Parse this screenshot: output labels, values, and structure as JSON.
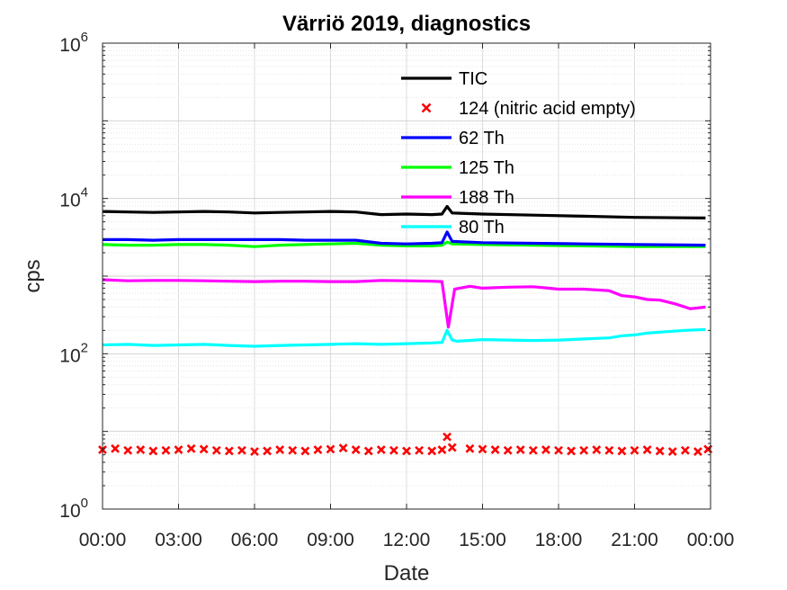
{
  "chart_data": {
    "type": "line",
    "title": "Värriö 2019, diagnostics",
    "xlabel": "Date",
    "ylabel": "cps",
    "yscale": "log",
    "ylim": [
      1,
      1000000
    ],
    "xlim_hours": [
      0,
      24
    ],
    "grid": true,
    "legend_position": "top-center",
    "x_tick_labels": [
      "00:00",
      "03:00",
      "06:00",
      "09:00",
      "12:00",
      "15:00",
      "18:00",
      "21:00",
      "00:00"
    ],
    "y_ticks": [
      {
        "base": "10",
        "exp": "0",
        "value": 1
      },
      {
        "base": "10",
        "exp": "2",
        "value": 100
      },
      {
        "base": "10",
        "exp": "4",
        "value": 10000
      },
      {
        "base": "10",
        "exp": "6",
        "value": 1000000
      }
    ],
    "series": [
      {
        "name": "TIC",
        "color": "#000000",
        "style": "line",
        "points": [
          [
            0,
            6800
          ],
          [
            1,
            6700
          ],
          [
            2,
            6600
          ],
          [
            3,
            6700
          ],
          [
            4,
            6800
          ],
          [
            5,
            6700
          ],
          [
            6,
            6500
          ],
          [
            7,
            6600
          ],
          [
            8,
            6700
          ],
          [
            9,
            6800
          ],
          [
            10,
            6700
          ],
          [
            11,
            6200
          ],
          [
            12,
            6300
          ],
          [
            13,
            6200
          ],
          [
            13.4,
            6300
          ],
          [
            13.6,
            7900
          ],
          [
            13.8,
            6500
          ],
          [
            15,
            6300
          ],
          [
            17,
            6100
          ],
          [
            19,
            5900
          ],
          [
            21,
            5700
          ],
          [
            23.8,
            5600
          ]
        ]
      },
      {
        "name": "124 (nitric acid empty)",
        "color": "#ff0000",
        "style": "markers",
        "points": [
          [
            0,
            5.8
          ],
          [
            0.5,
            6.0
          ],
          [
            1,
            5.7
          ],
          [
            1.5,
            5.8
          ],
          [
            2,
            5.6
          ],
          [
            2.5,
            5.7
          ],
          [
            3,
            5.8
          ],
          [
            3.5,
            6.0
          ],
          [
            4,
            5.9
          ],
          [
            4.5,
            5.7
          ],
          [
            5,
            5.6
          ],
          [
            5.5,
            5.7
          ],
          [
            6,
            5.5
          ],
          [
            6.5,
            5.6
          ],
          [
            7,
            5.8
          ],
          [
            7.5,
            5.7
          ],
          [
            8,
            5.6
          ],
          [
            8.5,
            5.8
          ],
          [
            9,
            5.9
          ],
          [
            9.5,
            6.1
          ],
          [
            10,
            5.8
          ],
          [
            10.5,
            5.6
          ],
          [
            11,
            5.8
          ],
          [
            11.5,
            5.7
          ],
          [
            12,
            5.6
          ],
          [
            12.5,
            5.7
          ],
          [
            13,
            5.6
          ],
          [
            13.4,
            5.8
          ],
          [
            13.6,
            8.5
          ],
          [
            13.8,
            6.2
          ],
          [
            14.5,
            6.0
          ],
          [
            15,
            5.9
          ],
          [
            15.5,
            5.8
          ],
          [
            16,
            5.7
          ],
          [
            16.5,
            5.8
          ],
          [
            17,
            5.7
          ],
          [
            17.5,
            5.8
          ],
          [
            18,
            5.7
          ],
          [
            18.5,
            5.6
          ],
          [
            19,
            5.7
          ],
          [
            19.5,
            5.8
          ],
          [
            20,
            5.7
          ],
          [
            20.5,
            5.6
          ],
          [
            21,
            5.7
          ],
          [
            21.5,
            5.8
          ],
          [
            22,
            5.6
          ],
          [
            22.5,
            5.5
          ],
          [
            23,
            5.7
          ],
          [
            23.5,
            5.5
          ],
          [
            23.9,
            5.9
          ]
        ]
      },
      {
        "name": "62 Th",
        "color": "#0000ff",
        "style": "line",
        "points": [
          [
            0,
            2950
          ],
          [
            1,
            2950
          ],
          [
            2,
            2900
          ],
          [
            3,
            2950
          ],
          [
            4,
            2950
          ],
          [
            5,
            2950
          ],
          [
            6,
            2950
          ],
          [
            7,
            2950
          ],
          [
            8,
            2900
          ],
          [
            9,
            2900
          ],
          [
            10,
            2900
          ],
          [
            11,
            2650
          ],
          [
            12,
            2600
          ],
          [
            13,
            2650
          ],
          [
            13.4,
            2700
          ],
          [
            13.6,
            3700
          ],
          [
            13.8,
            2800
          ],
          [
            15,
            2700
          ],
          [
            17,
            2650
          ],
          [
            19,
            2600
          ],
          [
            21,
            2550
          ],
          [
            23.8,
            2500
          ]
        ]
      },
      {
        "name": "125 Th",
        "color": "#00ff00",
        "style": "line",
        "points": [
          [
            0,
            2550
          ],
          [
            1,
            2500
          ],
          [
            2,
            2500
          ],
          [
            3,
            2550
          ],
          [
            4,
            2550
          ],
          [
            5,
            2500
          ],
          [
            6,
            2400
          ],
          [
            7,
            2500
          ],
          [
            8,
            2550
          ],
          [
            9,
            2600
          ],
          [
            10,
            2650
          ],
          [
            11,
            2500
          ],
          [
            12,
            2450
          ],
          [
            13,
            2450
          ],
          [
            13.4,
            2500
          ],
          [
            13.6,
            2750
          ],
          [
            13.8,
            2600
          ],
          [
            15,
            2550
          ],
          [
            17,
            2500
          ],
          [
            19,
            2450
          ],
          [
            21,
            2400
          ],
          [
            23.8,
            2400
          ]
        ]
      },
      {
        "name": "188 Th",
        "color": "#ff00ff",
        "style": "line",
        "points": [
          [
            0,
            900
          ],
          [
            1,
            870
          ],
          [
            2,
            880
          ],
          [
            3,
            880
          ],
          [
            4,
            870
          ],
          [
            5,
            860
          ],
          [
            6,
            850
          ],
          [
            7,
            860
          ],
          [
            8,
            860
          ],
          [
            9,
            850
          ],
          [
            10,
            850
          ],
          [
            11,
            880
          ],
          [
            12,
            870
          ],
          [
            13,
            860
          ],
          [
            13.4,
            850
          ],
          [
            13.65,
            220
          ],
          [
            13.9,
            680
          ],
          [
            14.5,
            740
          ],
          [
            15,
            700
          ],
          [
            16,
            720
          ],
          [
            17,
            730
          ],
          [
            17.6,
            700
          ],
          [
            18,
            680
          ],
          [
            19,
            680
          ],
          [
            20,
            650
          ],
          [
            20.5,
            560
          ],
          [
            21,
            540
          ],
          [
            21.5,
            500
          ],
          [
            22,
            490
          ],
          [
            22.6,
            440
          ],
          [
            23.2,
            380
          ],
          [
            23.8,
            400
          ]
        ]
      },
      {
        "name": "80 Th",
        "color": "#00ffff",
        "style": "line",
        "points": [
          [
            0,
            130
          ],
          [
            1,
            132
          ],
          [
            2,
            128
          ],
          [
            3,
            130
          ],
          [
            4,
            132
          ],
          [
            5,
            128
          ],
          [
            6,
            125
          ],
          [
            7,
            128
          ],
          [
            8,
            130
          ],
          [
            9,
            132
          ],
          [
            10,
            135
          ],
          [
            11,
            132
          ],
          [
            12,
            135
          ],
          [
            13,
            138
          ],
          [
            13.4,
            140
          ],
          [
            13.6,
            200
          ],
          [
            13.8,
            150
          ],
          [
            14,
            145
          ],
          [
            15,
            152
          ],
          [
            16,
            150
          ],
          [
            17,
            148
          ],
          [
            18,
            150
          ],
          [
            19,
            155
          ],
          [
            20,
            160
          ],
          [
            20.5,
            170
          ],
          [
            21,
            175
          ],
          [
            21.5,
            185
          ],
          [
            22,
            190
          ],
          [
            23,
            200
          ],
          [
            23.8,
            205
          ]
        ]
      }
    ]
  }
}
